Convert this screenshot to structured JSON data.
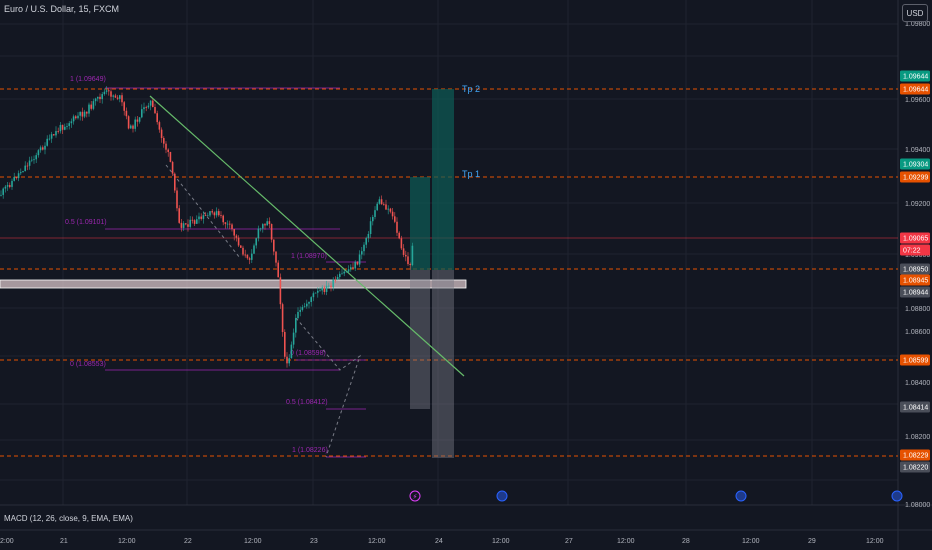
{
  "header": {
    "symbol_title": "Euro / U.S. Dollar, 15, FXCM",
    "currency_button": "USD"
  },
  "price_axis": {
    "ticks": [
      "1.09800",
      "1.09600",
      "1.09400",
      "1.09200",
      "1.09000",
      "1.08800",
      "1.08600",
      "1.08400",
      "1.08200",
      "1.08000"
    ],
    "badges": [
      {
        "text": "1.09644",
        "color": "#089981"
      },
      {
        "text": "1.09644",
        "color": "#e65100"
      },
      {
        "text": "1.09304",
        "color": "#089981"
      },
      {
        "text": "1.09299",
        "color": "#e65100"
      },
      {
        "text": "1.09065",
        "color": "#f23645"
      },
      {
        "text": "07:22",
        "color": "#f23645"
      },
      {
        "text": "1.08950",
        "color": "#4a4e59"
      },
      {
        "text": "1.08945",
        "color": "#e65100"
      },
      {
        "text": "1.08944",
        "color": "#4a4e59"
      },
      {
        "text": "1.08599",
        "color": "#e65100"
      },
      {
        "text": "1.08414",
        "color": "#4a4e59"
      },
      {
        "text": "1.08229",
        "color": "#e65100"
      },
      {
        "text": "1.08220",
        "color": "#4a4e59"
      }
    ]
  },
  "time_axis": {
    "ticks": [
      "2:00",
      "21",
      "12:00",
      "22",
      "12:00",
      "23",
      "12:00",
      "24",
      "12:00",
      "27",
      "12:00",
      "28",
      "12:00",
      "29",
      "12:00"
    ]
  },
  "fib_left": {
    "labels": [
      "1 (1.09649)",
      "0.5 (1.09101)",
      "0 (1.08553)"
    ]
  },
  "fib_right": {
    "labels": [
      "1 (1.08970)",
      "0 (1.08598)",
      "0.5 (1.08412)",
      "1 (1.08226)"
    ]
  },
  "targets": {
    "tp1": "Tp 1",
    "tp2": "Tp 2"
  },
  "indicator": {
    "label": "MACD (12, 26, close, 9, EMA, EMA)"
  },
  "colors": {
    "background": "#131722",
    "up": "#26a69a",
    "down": "#ef5350",
    "fib": "#9c27b0",
    "trendline": "#4caf50",
    "level": "#e65100"
  }
}
